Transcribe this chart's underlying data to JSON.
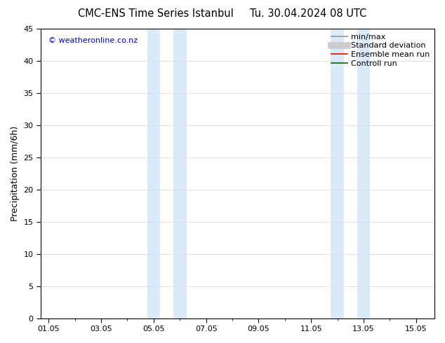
{
  "title": "CMC-ENS Time Series Istanbul     Tu. 30.04.2024 08 UTC",
  "ylabel": "Precipitation (mm/6h)",
  "ylim": [
    0,
    45
  ],
  "yticks": [
    0,
    5,
    10,
    15,
    20,
    25,
    30,
    35,
    40,
    45
  ],
  "xtick_labels": [
    "01.05",
    "03.05",
    "05.05",
    "07.05",
    "09.05",
    "11.05",
    "13.05",
    "15.05"
  ],
  "xtick_positions": [
    0,
    2,
    4,
    6,
    8,
    10,
    12,
    14
  ],
  "xlim": [
    -0.3,
    14.7
  ],
  "shade_bands": [
    {
      "x_start": 3.75,
      "x_end": 4.25
    },
    {
      "x_start": 4.75,
      "x_end": 5.25
    },
    {
      "x_start": 10.75,
      "x_end": 11.25
    },
    {
      "x_start": 11.75,
      "x_end": 12.25
    }
  ],
  "shade_color": "#daeaf8",
  "watermark": "© weatheronline.co.nz",
  "watermark_color": "#0000bb",
  "legend_items": [
    {
      "label": "min/max",
      "color": "#999999",
      "lw": 1.2,
      "ls": "-"
    },
    {
      "label": "Standard deviation",
      "color": "#cccccc",
      "lw": 7,
      "ls": "-"
    },
    {
      "label": "Ensemble mean run",
      "color": "#ee0000",
      "lw": 1.2,
      "ls": "-"
    },
    {
      "label": "Controll run",
      "color": "#006600",
      "lw": 1.2,
      "ls": "-"
    }
  ],
  "background_color": "#ffffff",
  "grid_color": "#dddddd",
  "title_fontsize": 10.5,
  "ylabel_fontsize": 9,
  "tick_fontsize": 8,
  "watermark_fontsize": 8,
  "legend_fontsize": 8
}
